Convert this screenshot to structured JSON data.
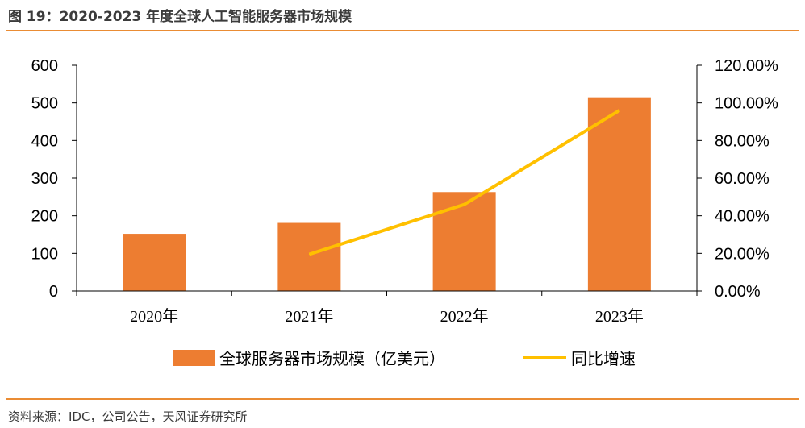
{
  "figure": {
    "title": "图 19：2020-2023 年度全球人工智能服务器市场规模",
    "source": "资料来源：IDC，公司公告，天风证券研究所"
  },
  "colors": {
    "bar": "#ed7d31",
    "line": "#ffc000",
    "accent_rule": "#ea8c34",
    "axis": "#000000"
  },
  "chart_data": {
    "type": "bar",
    "categories": [
      "2020年",
      "2021年",
      "2022年",
      "2023年"
    ],
    "series": [
      {
        "name": "全球服务器市场规模（亿美元）",
        "type": "bar",
        "axis": "left",
        "values": [
          152,
          181,
          263,
          515
        ]
      },
      {
        "name": "同比增速",
        "type": "line",
        "axis": "right",
        "values": [
          null,
          0.195,
          0.46,
          0.96
        ]
      }
    ],
    "ylim": [
      0,
      600
    ],
    "yticks": [
      0,
      100,
      200,
      300,
      400,
      500,
      600
    ],
    "y2lim": [
      0,
      1.2
    ],
    "y2ticks": [
      "0.00%",
      "20.00%",
      "40.00%",
      "60.00%",
      "80.00%",
      "100.00%",
      "120.00%"
    ],
    "grid": false,
    "legend": "bottom"
  }
}
